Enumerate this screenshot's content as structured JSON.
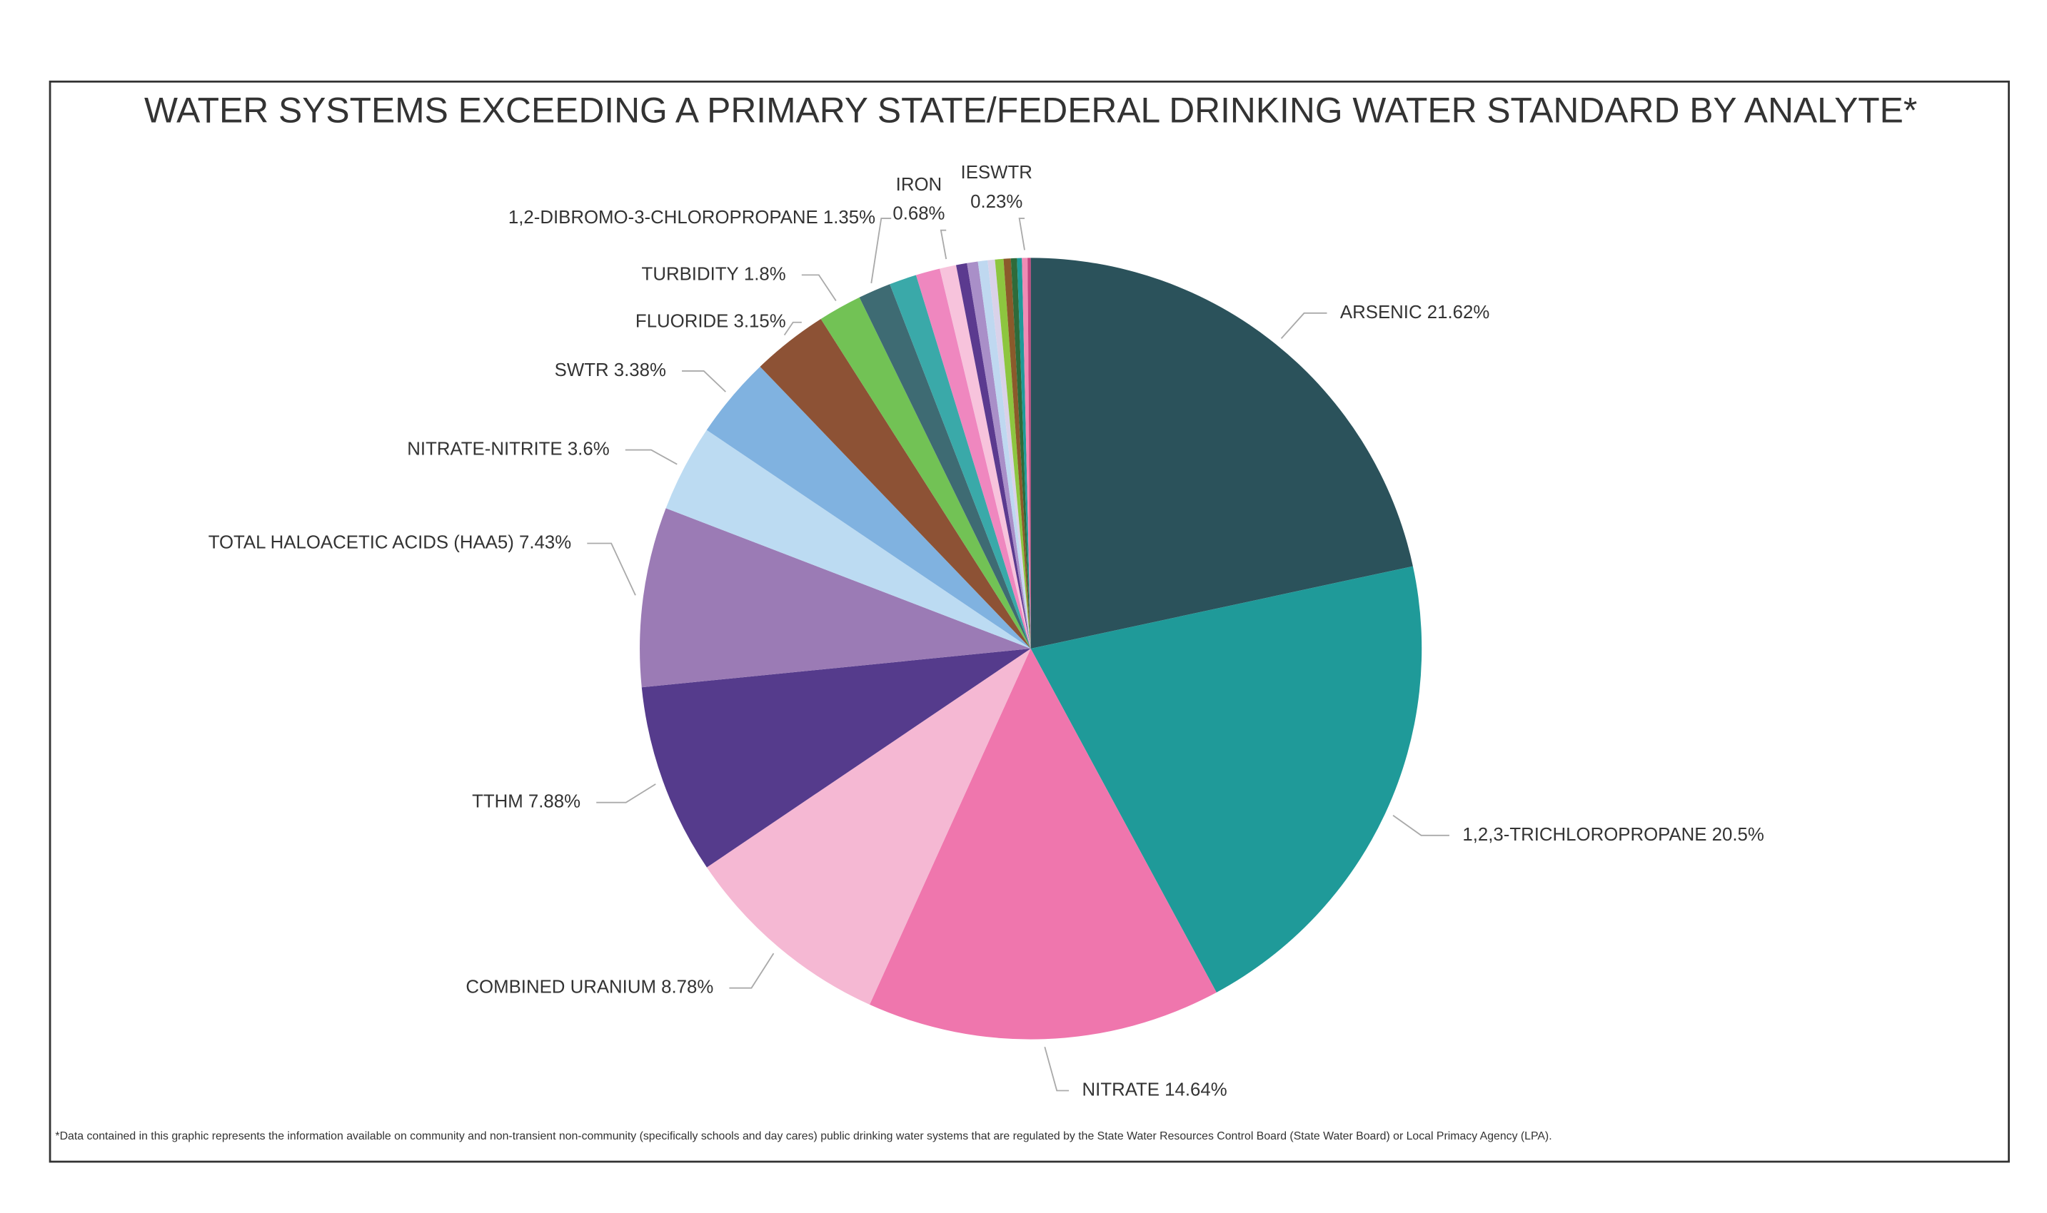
{
  "chart_data": {
    "type": "pie",
    "title": "WATER SYSTEMS EXCEEDING A PRIMARY STATE/FEDERAL DRINKING WATER STANDARD BY ANALYTE*",
    "footnote": "*Data contained in this graphic represents the information available on community and non-transient non-community (specifically schools and day cares) public drinking water systems that are regulated by the State Water Resources Control Board (State Water Board) or Local Primacy Agency (LPA).",
    "categories": [
      "ARSENIC",
      "1,2,3-TRICHLOROPROPANE",
      "NITRATE",
      "COMBINED URANIUM",
      "TTHM",
      "TOTAL HALOACETIC ACIDS (HAA5)",
      "NITRATE-NITRITE",
      "SWTR",
      "FLUORIDE",
      "TURBIDITY",
      "1,2-DIBROMO-3-CHLOROPROPANE",
      null,
      null,
      "IRON",
      null,
      null,
      null,
      null,
      null,
      null,
      null,
      null,
      "IESWTR",
      null
    ],
    "values": [
      21.62,
      20.5,
      14.64,
      8.78,
      7.88,
      7.43,
      3.6,
      3.38,
      3.15,
      1.8,
      1.35,
      1.13,
      1.0,
      0.68,
      0.45,
      0.45,
      0.4,
      0.3,
      0.35,
      0.3,
      0.25,
      0.2,
      0.23,
      0.13
    ],
    "value_labels": [
      "21.62%",
      "20.5%",
      "14.64%",
      "8.78%",
      "7.88%",
      "7.43%",
      "3.6%",
      "3.38%",
      "3.15%",
      "1.8%",
      "1.35%",
      null,
      null,
      "0.68%",
      null,
      null,
      null,
      null,
      null,
      null,
      null,
      null,
      "0.23%",
      null
    ],
    "colors": [
      "#2b525b",
      "#1f9a99",
      "#ef76ad",
      "#f5b8d3",
      "#553b8c",
      "#9b7bb5",
      "#bcdbf2",
      "#80b2e0",
      "#8d5235",
      "#72c255",
      "#3e6b73",
      "#3aa9a9",
      "#ef87bf",
      "#f7c3dc",
      "#5b3a8f",
      "#a98fc8",
      "#bfd8f0",
      "#d9d2e9",
      "#8dc63f",
      "#8b5a2b",
      "#2e6b3a",
      "#1f9a99",
      "#f08bb5",
      "#c2477f"
    ]
  }
}
